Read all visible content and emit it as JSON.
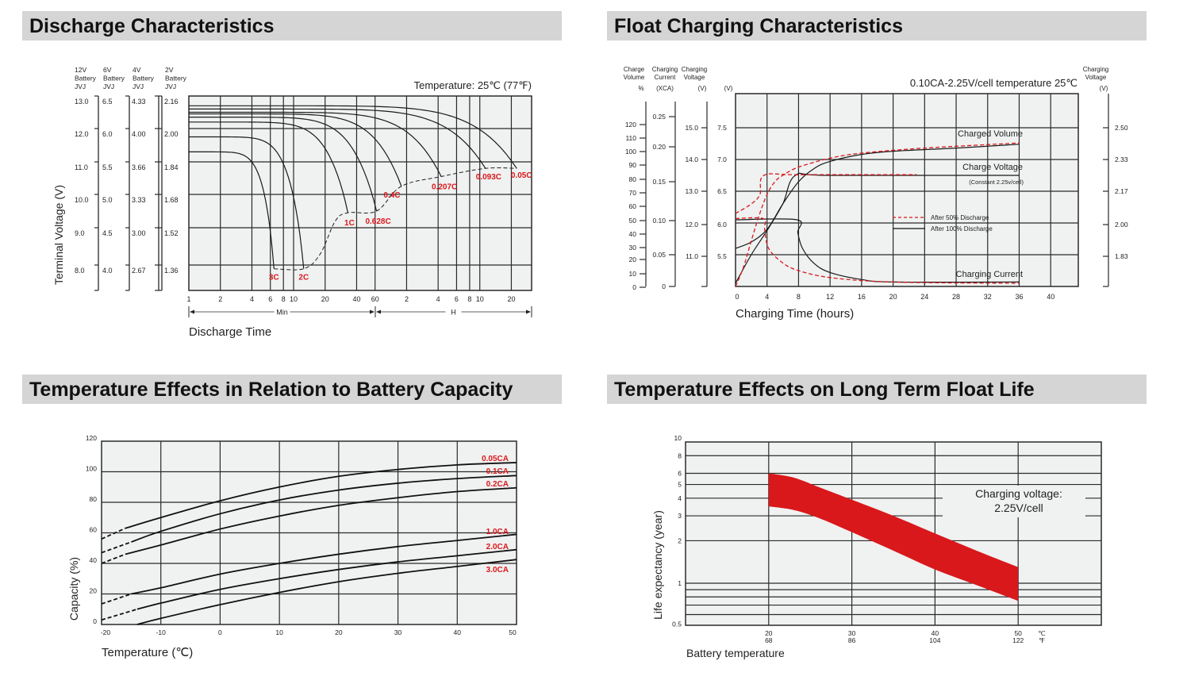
{
  "panels": [
    {
      "title": "Discharge Characteristics"
    },
    {
      "title": "Float Charging Characteristics"
    },
    {
      "title": "Temperature Effects in Relation to Battery Capacity"
    },
    {
      "title": "Temperature Effects on Long Term Float Life"
    }
  ],
  "colors": {
    "header_bg": "#d5d5d5",
    "plot_bg": "#f0f1f1",
    "grid": "#2a2a2a",
    "accent_red": "#d9181b"
  },
  "chart_data": [
    {
      "type": "line",
      "annotation": "Temperature: 25℃ (77℉)",
      "ylabel": "Terminal Voltage (V)",
      "xlabel": "Discharge Time",
      "x_scale": "log",
      "x_unit_groups": [
        {
          "label": "Min"
        },
        {
          "label": "H"
        }
      ],
      "y_axes": [
        {
          "header": [
            "12V",
            "Battery",
            "JVJ"
          ],
          "ticks": [
            "13.0",
            "12.0",
            "11.0",
            "10.0",
            "9.0",
            "8.0"
          ]
        },
        {
          "header": [
            "6V",
            "Battery",
            "JVJ"
          ],
          "ticks": [
            "6.5",
            "6.0",
            "5.5",
            "5.0",
            "4.5",
            "4.0"
          ]
        },
        {
          "header": [
            "4V",
            "Battery",
            "JVJ"
          ],
          "ticks": [
            "4.33",
            "4.00",
            "3.66",
            "3.33",
            "3.00",
            "2.67"
          ]
        },
        {
          "header": [
            "2V",
            "Battery",
            "JVJ"
          ],
          "ticks": [
            "2.16",
            "2.00",
            "1.84",
            "1.68",
            "1.52",
            "1.36"
          ]
        }
      ],
      "y_levels_12v": [
        13,
        12,
        11,
        10,
        9,
        8
      ],
      "x_ticks_minutes": [
        1,
        2,
        4,
        6,
        8,
        10,
        20,
        40,
        60,
        120,
        240,
        360,
        480,
        600,
        1200
      ],
      "x_tick_labels": [
        "1",
        "2",
        "4",
        "6",
        "8",
        "10",
        "20",
        "40",
        "60",
        "2",
        "4",
        "6",
        "8",
        "10",
        "20"
      ],
      "series": [
        {
          "name": "3C",
          "start_v": 11.3,
          "end_min": 6.5,
          "end_v": 7.9
        },
        {
          "name": "2C",
          "start_v": 11.75,
          "end_min": 12.5,
          "end_v": 7.9
        },
        {
          "name": "1C",
          "start_v": 12.2,
          "end_min": 33,
          "end_v": 9.45
        },
        {
          "name": "0.628C",
          "start_v": 12.35,
          "end_min": 62,
          "end_v": 9.5
        },
        {
          "name": "0.4C",
          "start_v": 12.45,
          "end_min": 107,
          "end_v": 10.25
        },
        {
          "name": "0.207C",
          "start_v": 12.5,
          "end_min": 257,
          "end_v": 10.55
        },
        {
          "name": "0.093C",
          "start_v": 12.6,
          "end_min": 680,
          "end_v": 10.8
        },
        {
          "name": "0.05C",
          "start_v": 12.7,
          "end_min": 1350,
          "end_v": 10.8
        }
      ]
    },
    {
      "type": "line",
      "title": "0.10CA-2.25V/cell  temperature 25℃",
      "xlabel": "Charging Time (hours)",
      "xlim": [
        0,
        44
      ],
      "x_ticks": [
        0,
        4,
        8,
        12,
        16,
        20,
        24,
        28,
        32,
        36,
        40
      ],
      "ylim_v": [
        5.0,
        7.54
      ],
      "axes": {
        "volume": {
          "header": [
            "Charge",
            "Volume"
          ],
          "unit": "%",
          "ticks": [
            120,
            110,
            100,
            90,
            80,
            70,
            60,
            50,
            40,
            30,
            20,
            10,
            0
          ]
        },
        "current": {
          "header": [
            "Charging",
            "Current"
          ],
          "unit": "(XCA)",
          "ticks": [
            "0.25",
            "0.20",
            "0.15",
            "0.10",
            "0.05",
            "0"
          ]
        },
        "voltage12": {
          "header": [
            "Charging",
            "Voltage"
          ],
          "unit": "(V)",
          "ticks": [
            "15.0",
            "14.0",
            "13.0",
            "12.0",
            "11.0"
          ]
        },
        "voltage6": {
          "unit": "(V)",
          "ticks": [
            "7.5",
            "7.0",
            "6.5",
            "6.0",
            "5.5"
          ]
        },
        "cell": {
          "header": [
            "Charging",
            "Voltage"
          ],
          "unit": "(V)",
          "ticks": [
            "2.50",
            "2.33",
            "2.17",
            "2.00",
            "1.83"
          ]
        }
      },
      "labels": {
        "volume": "Charged Volume",
        "voltage": "Charge Voltage",
        "voltage_note": "(Constant 2.25v/cell)",
        "current": "Charging Current"
      },
      "legend": [
        {
          "name": "After   50% Discharge",
          "style": "dashed-red"
        },
        {
          "name": "After 100% Discharge",
          "style": "solid-black"
        }
      ],
      "series": [
        {
          "group": "100%",
          "style": "solid",
          "points": [
            [
              0,
              5.05
            ],
            [
              2,
              5.5
            ],
            [
              4,
              5.88
            ],
            [
              6,
              6.3
            ],
            [
              7.6,
              6.75
            ],
            [
              12,
              6.75
            ],
            [
              36,
              6.75
            ]
          ]
        },
        {
          "group": "100%",
          "style": "solid",
          "points": [
            [
              0,
              5.6
            ],
            [
              2,
              5.7
            ],
            [
              4,
              5.9
            ],
            [
              6,
              6.3
            ],
            [
              8,
              6.65
            ],
            [
              10,
              6.86
            ],
            [
              12,
              6.97
            ],
            [
              16,
              7.08
            ],
            [
              20,
              7.13
            ],
            [
              28,
              7.18
            ],
            [
              36,
              7.24
            ]
          ]
        },
        {
          "group": "100%",
          "style": "solid",
          "points": [
            [
              0,
              6.05
            ],
            [
              7.8,
              6.05
            ],
            [
              7.9,
              5.85
            ],
            [
              8.5,
              5.6
            ],
            [
              10,
              5.36
            ],
            [
              12,
              5.22
            ],
            [
              16,
              5.11
            ],
            [
              20,
              5.07
            ],
            [
              36,
              5.07
            ]
          ]
        },
        {
          "group": "50%",
          "style": "dashed",
          "points": [
            [
              0,
              6.15
            ],
            [
              2,
              6.3
            ],
            [
              3.1,
              6.45
            ],
            [
              3.6,
              6.75
            ],
            [
              8,
              6.76
            ],
            [
              23,
              6.76
            ]
          ]
        },
        {
          "group": "50%",
          "style": "dashed",
          "points": [
            [
              0,
              5.0
            ],
            [
              1,
              5.3
            ],
            [
              2,
              5.72
            ],
            [
              3,
              6.12
            ],
            [
              4,
              6.45
            ],
            [
              5,
              6.65
            ],
            [
              6,
              6.75
            ],
            [
              8,
              6.88
            ],
            [
              12,
              7.02
            ],
            [
              16,
              7.1
            ],
            [
              24,
              7.18
            ],
            [
              36,
              7.26
            ]
          ]
        },
        {
          "group": "50%",
          "style": "dashed",
          "points": [
            [
              0,
              6.07
            ],
            [
              3.5,
              6.07
            ],
            [
              3.7,
              5.9
            ],
            [
              4.2,
              5.6
            ],
            [
              6,
              5.37
            ],
            [
              8,
              5.25
            ],
            [
              12,
              5.14
            ],
            [
              20,
              5.07
            ],
            [
              36,
              5.05
            ]
          ]
        }
      ]
    },
    {
      "type": "line",
      "xlabel": "Temperature (℃)",
      "ylabel": "Capacity (%)",
      "xlim": [
        -20,
        50
      ],
      "ylim": [
        0,
        120
      ],
      "x_ticks": [
        -20,
        -10,
        0,
        10,
        20,
        30,
        40,
        50
      ],
      "y_ticks": [
        0,
        20,
        40,
        60,
        80,
        100,
        120
      ],
      "series": [
        {
          "name": "0.05CA",
          "dashed_until": -16,
          "points": [
            [
              -20,
              56
            ],
            [
              -16,
              63
            ],
            [
              -10,
              70
            ],
            [
              0,
              81
            ],
            [
              10,
              90
            ],
            [
              20,
              97
            ],
            [
              30,
              101.5
            ],
            [
              40,
              104.5
            ],
            [
              50,
              106
            ]
          ]
        },
        {
          "name": "0.1CA",
          "dashed_until": -15,
          "points": [
            [
              -20,
              47
            ],
            [
              -15,
              54
            ],
            [
              -10,
              61
            ],
            [
              0,
              72.5
            ],
            [
              10,
              81.5
            ],
            [
              20,
              88
            ],
            [
              30,
              92.5
            ],
            [
              40,
              95.5
            ],
            [
              50,
              97.5
            ]
          ]
        },
        {
          "name": "0.2CA",
          "dashed_until": -16,
          "points": [
            [
              -20,
              40
            ],
            [
              -16,
              46
            ],
            [
              -10,
              52
            ],
            [
              0,
              62.5
            ],
            [
              10,
              71
            ],
            [
              20,
              78
            ],
            [
              30,
              83
            ],
            [
              40,
              87
            ],
            [
              50,
              89.5
            ]
          ]
        },
        {
          "name": "1.0CA",
          "dashed_until": -15,
          "points": [
            [
              -20,
              13.5
            ],
            [
              -15,
              20
            ],
            [
              -10,
              24
            ],
            [
              0,
              33
            ],
            [
              10,
              40
            ],
            [
              20,
              46
            ],
            [
              30,
              51
            ],
            [
              40,
              55
            ],
            [
              50,
              59
            ]
          ]
        },
        {
          "name": "2.0CA",
          "dashed_until": -14,
          "points": [
            [
              -20,
              3
            ],
            [
              -14,
              10
            ],
            [
              -10,
              14
            ],
            [
              0,
              23
            ],
            [
              10,
              30
            ],
            [
              20,
              36
            ],
            [
              30,
              41
            ],
            [
              40,
              45
            ],
            [
              50,
              49
            ]
          ]
        },
        {
          "name": "3.0CA",
          "dashed_until": -14,
          "points": [
            [
              -14,
              0
            ],
            [
              -10,
              4
            ],
            [
              0,
              13
            ],
            [
              10,
              21
            ],
            [
              20,
              28
            ],
            [
              30,
              33.5
            ],
            [
              40,
              38
            ],
            [
              50,
              42.5
            ]
          ]
        }
      ]
    },
    {
      "type": "area",
      "xlabel": "Battery temperature",
      "ylabel": "Life expectancy (year)",
      "y_scale": "log",
      "xlim": [
        10,
        60
      ],
      "ylim": [
        0.5,
        10
      ],
      "y_tick_labels": [
        "10",
        "8",
        "6",
        "5",
        "4",
        "3",
        "2",
        "1",
        "0.5"
      ],
      "y_ticks": [
        10,
        8,
        6,
        5,
        4,
        3,
        2,
        1,
        0.5
      ],
      "y_minor_grid": [
        0.9,
        0.8,
        0.7,
        0.6
      ],
      "x_ticks": [
        {
          "c": "20",
          "f": "68",
          "value": 20
        },
        {
          "c": "30",
          "f": "86",
          "value": 30
        },
        {
          "c": "40",
          "f": "104",
          "value": 40
        },
        {
          "c": "50",
          "f": "122",
          "value": 50
        }
      ],
      "x_units": {
        "c": "℃",
        "f": "℉"
      },
      "annotation": [
        "Charging voltage:",
        "2.25V/cell"
      ],
      "band": {
        "upper": [
          [
            20,
            6.0
          ],
          [
            23,
            5.6
          ],
          [
            26,
            4.8
          ],
          [
            30,
            3.9
          ],
          [
            35,
            3.0
          ],
          [
            40,
            2.25
          ],
          [
            45,
            1.7
          ],
          [
            50,
            1.3
          ]
        ],
        "lower": [
          [
            20,
            3.5
          ],
          [
            23,
            3.3
          ],
          [
            26,
            2.9
          ],
          [
            30,
            2.3
          ],
          [
            35,
            1.7
          ],
          [
            40,
            1.25
          ],
          [
            45,
            0.97
          ],
          [
            50,
            0.75
          ]
        ]
      }
    }
  ]
}
